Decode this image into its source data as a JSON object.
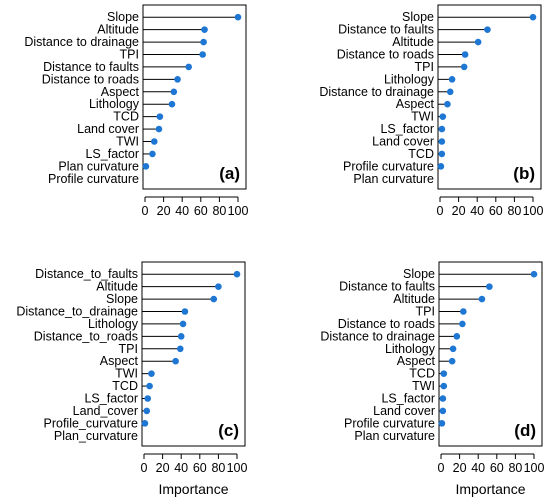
{
  "accent_color": "#1f77d4",
  "chart_data": [
    {
      "type": "lollipop",
      "panel_label": "(a)",
      "categories": [
        "Slope",
        "Altitude",
        "Distance to drainage",
        "TPI",
        "Distance to faults",
        "Distance to roads",
        "Aspect",
        "Lithology",
        "TCD",
        "Land cover",
        "TWI",
        "LS_factor",
        "Plan curvature",
        "Profile curvature"
      ],
      "values": [
        100,
        64,
        63,
        62,
        47,
        35,
        31,
        29,
        16,
        15,
        10,
        8,
        1,
        null
      ],
      "xlim": [
        0,
        100
      ],
      "xticks": [
        0,
        20,
        40,
        60,
        80,
        100
      ],
      "xlabel": ""
    },
    {
      "type": "lollipop",
      "panel_label": "(b)",
      "categories": [
        "Slope",
        "Distance to faults",
        "Altitude",
        "Distance to roads",
        "TPI",
        "Lithology",
        "Distance to drainage",
        "Aspect",
        "TWI",
        "LS_factor",
        "Land cover",
        "TCD",
        "Profile curvature",
        "Plan curvature"
      ],
      "values": [
        100,
        51,
        41,
        27,
        26,
        13,
        11,
        8,
        3,
        2,
        2,
        2,
        1,
        null
      ],
      "xlim": [
        0,
        100
      ],
      "xticks": [
        0,
        20,
        40,
        60,
        80,
        100
      ],
      "xlabel": ""
    },
    {
      "type": "lollipop",
      "panel_label": "(c)",
      "categories": [
        "Distance_to_faults",
        "Altitude",
        "Slope",
        "Distance_to_drainage",
        "Lithology",
        "Distance_to_roads",
        "TPI",
        "Aspect",
        "TWI",
        "TCD",
        "LS_factor",
        "Land_cover",
        "Profile_curvature",
        "Plan_curvature"
      ],
      "values": [
        100,
        80,
        75,
        44,
        42,
        40,
        39,
        34,
        8,
        6,
        4,
        3,
        1,
        null
      ],
      "xlim": [
        0,
        100
      ],
      "xticks": [
        0,
        20,
        40,
        60,
        80,
        100
      ],
      "xlabel": "Importance"
    },
    {
      "type": "lollipop",
      "panel_label": "(d)",
      "categories": [
        "Slope",
        "Distance to faults",
        "Altitude",
        "TPI",
        "Distance to roads",
        "Distance to drainage",
        "Lithology",
        "Aspect",
        "TCD",
        "TWI",
        "LS_factor",
        "Land cover",
        "Profile curvature",
        "Plan curvature"
      ],
      "values": [
        100,
        52,
        44,
        24,
        23,
        17,
        13,
        12,
        3,
        3,
        2,
        2,
        1,
        null
      ],
      "xlim": [
        0,
        100
      ],
      "xticks": [
        0,
        20,
        40,
        60,
        80,
        100
      ],
      "xlabel": "Importance"
    }
  ]
}
